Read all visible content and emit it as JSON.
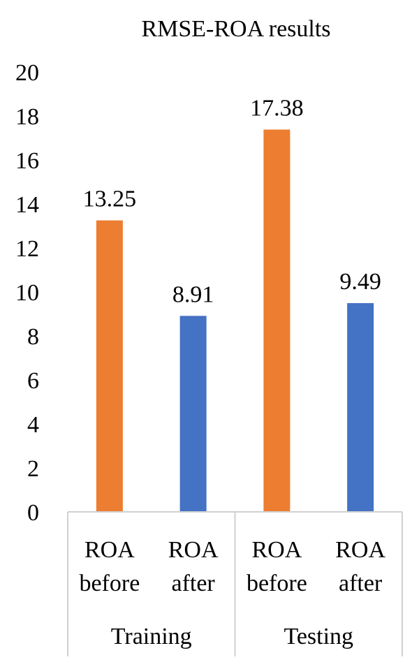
{
  "chart_data": {
    "type": "bar",
    "title": "RMSE-ROA results",
    "xlabel": "",
    "ylabel": "",
    "ylim": [
      0,
      20
    ],
    "yticks": [
      0,
      2,
      4,
      6,
      8,
      10,
      12,
      14,
      16,
      18,
      20
    ],
    "grid": false,
    "legend": "none",
    "categories": [
      {
        "line1": "ROA",
        "line2": "before",
        "group": "Training"
      },
      {
        "line1": "ROA",
        "line2": "after",
        "group": "Training"
      },
      {
        "line1": "ROA",
        "line2": "before",
        "group": "Testing"
      },
      {
        "line1": "ROA",
        "line2": "after",
        "group": "Testing"
      }
    ],
    "groups": [
      "Training",
      "Testing"
    ],
    "values": [
      13.25,
      8.91,
      17.38,
      9.49
    ],
    "data_labels": [
      "13.25",
      "8.91",
      "17.38",
      "9.49"
    ],
    "bar_colors": [
      "#ED7D31",
      "#4472C4",
      "#ED7D31",
      "#4472C4"
    ]
  }
}
